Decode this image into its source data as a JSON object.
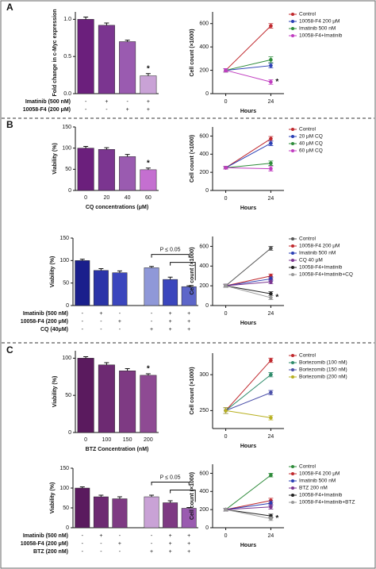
{
  "panels": [
    "A",
    "B",
    "C"
  ],
  "chart_data": [
    {
      "type": "bar",
      "ylabel": "Fold change in c-Myc expression",
      "values": [
        1.0,
        0.92,
        0.7,
        0.24
      ],
      "errors": [
        0.03,
        0.03,
        0.02,
        0.03
      ],
      "colors": [
        "#6b1f7c",
        "#7b3590",
        "#9a5bb0",
        "#c9a2d6"
      ],
      "markers": [
        null,
        null,
        null,
        "*"
      ],
      "ylim": [
        0,
        1.1
      ],
      "yticks": [
        {
          "value": 0,
          "label": "0.0"
        },
        {
          "value": 0.5,
          "label": "0.5"
        },
        {
          "value": 1.0,
          "label": "1.0"
        }
      ],
      "conditions": [
        {
          "label": "Imatinib (500 nM)",
          "signs": [
            "-",
            "+",
            "-",
            "+"
          ]
        },
        {
          "label": "10058-F4 (200 μM)",
          "signs": [
            "-",
            "-",
            "+",
            "+"
          ]
        }
      ]
    },
    {
      "type": "line",
      "xlabel": "Hours",
      "ylabel": "Cell count (×1000)",
      "x": [
        0,
        24
      ],
      "xlim": [
        -7,
        31
      ],
      "xticks": [
        0,
        24
      ],
      "ylim": [
        0,
        700
      ],
      "yticks": [
        0,
        200,
        400,
        600
      ],
      "series": [
        {
          "name": "Control",
          "color": "#c0282d",
          "values": [
            200,
            580
          ],
          "errors": [
            15,
            20
          ]
        },
        {
          "name": "10058-F4 200 μM",
          "color": "#2a3fb5",
          "values": [
            200,
            240
          ],
          "errors": [
            15,
            20
          ]
        },
        {
          "name": "Imatinib 500 nM",
          "color": "#2e8b3a",
          "values": [
            200,
            290
          ],
          "errors": [
            15,
            25
          ]
        },
        {
          "name": "10058-F4+Imatinib",
          "color": "#c03cc0",
          "values": [
            200,
            100
          ],
          "errors": [
            15,
            20
          ],
          "marker_label": "*"
        }
      ]
    },
    {
      "type": "bar",
      "ylabel": "Viability (%)",
      "xlabel": "CQ concentrations (μM)",
      "categories": [
        "0",
        "20",
        "40",
        "60"
      ],
      "values": [
        100,
        97,
        80,
        49
      ],
      "errors": [
        4,
        4,
        5,
        4
      ],
      "colors": [
        "#6b1f7c",
        "#7b3590",
        "#9a5bb0",
        "#c46fd0"
      ],
      "markers": [
        null,
        null,
        null,
        "*"
      ],
      "ylim": [
        0,
        150
      ],
      "yticks": [
        0,
        50,
        100,
        150
      ]
    },
    {
      "type": "line",
      "xlabel": "Hours",
      "ylabel": "Cell count (×1000)",
      "x": [
        0,
        24
      ],
      "xlim": [
        -7,
        31
      ],
      "xticks": [
        0,
        24
      ],
      "ylim": [
        0,
        700
      ],
      "yticks": [
        0,
        200,
        400,
        600
      ],
      "series": [
        {
          "name": "Control",
          "color": "#c0282d",
          "values": [
            250,
            570
          ],
          "errors": [
            15,
            25
          ]
        },
        {
          "name": "20 μM CQ",
          "color": "#2a3fb5",
          "values": [
            250,
            520
          ],
          "errors": [
            15,
            25
          ]
        },
        {
          "name": "40 μM CQ",
          "color": "#2e8b3a",
          "values": [
            250,
            300
          ],
          "errors": [
            15,
            25
          ]
        },
        {
          "name": "60 μM CQ",
          "color": "#c03cc0",
          "values": [
            250,
            240
          ],
          "errors": [
            15,
            25
          ]
        }
      ]
    },
    {
      "type": "bar",
      "ylabel": "Viability (%)",
      "values": [
        100,
        78,
        73,
        84,
        58,
        42
      ],
      "errors": [
        3,
        4,
        4,
        3,
        5,
        2
      ],
      "colors": [
        "#1a1f8c",
        "#2b34a8",
        "#3b46bd",
        "#8f98d8",
        "#3b46bd",
        "#5d66c9"
      ],
      "annotation": "P ≤ 0.05",
      "ylim": [
        0,
        150
      ],
      "yticks": [
        0,
        50,
        100,
        150
      ],
      "conditions": [
        {
          "label": "Imatinib (500 nM)",
          "signs": [
            "-",
            "+",
            "-",
            "-",
            "+",
            "+"
          ]
        },
        {
          "label": "10058-F4 (200 μM)",
          "signs": [
            "-",
            "-",
            "+",
            "-",
            "+",
            "+"
          ]
        },
        {
          "label": "CQ (40μM)",
          "signs": [
            "-",
            "-",
            "-",
            "+",
            "+",
            "+"
          ]
        }
      ]
    },
    {
      "type": "line",
      "xlabel": "Hours",
      "ylabel": "Cell count (×1000)",
      "x": [
        0,
        24
      ],
      "xlim": [
        -7,
        31
      ],
      "xticks": [
        0,
        24
      ],
      "ylim": [
        0,
        700
      ],
      "yticks": [
        0,
        200,
        400,
        600
      ],
      "series": [
        {
          "name": "Control",
          "color": "#555555",
          "values": [
            200,
            580
          ],
          "errors": [
            15,
            20
          ]
        },
        {
          "name": "10058-F4 200 μM",
          "color": "#c0282d",
          "values": [
            200,
            300
          ],
          "errors": [
            15,
            20
          ]
        },
        {
          "name": "Imatinib 500 nM",
          "color": "#2a3fb5",
          "values": [
            200,
            270
          ],
          "errors": [
            15,
            20
          ]
        },
        {
          "name": "CQ 40 μM",
          "color": "#7b3590",
          "values": [
            200,
            240
          ],
          "errors": [
            15,
            20
          ]
        },
        {
          "name": "10058-F4+Imatinib",
          "color": "#222222",
          "values": [
            200,
            120
          ],
          "errors": [
            15,
            20
          ]
        },
        {
          "name": "10058-F4+Imatinib+CQ",
          "color": "#999999",
          "values": [
            200,
            80
          ],
          "errors": [
            15,
            20
          ],
          "marker_label": "*"
        }
      ]
    },
    {
      "type": "bar",
      "ylabel": "Viability (%)",
      "xlabel": "BTZ Concentration (nM)",
      "categories": [
        "0",
        "100",
        "150",
        "200"
      ],
      "values": [
        100,
        91,
        83,
        77
      ],
      "errors": [
        2,
        3,
        3,
        2
      ],
      "colors": [
        "#5a1a5e",
        "#6d2a72",
        "#7e3a83",
        "#8e4a93"
      ],
      "markers": [
        null,
        null,
        null,
        "*"
      ],
      "ylim": [
        0,
        110
      ],
      "yticks": [
        0,
        50,
        100
      ]
    },
    {
      "type": "line",
      "xlabel": "Hours",
      "ylabel": "Cell count (×1000)",
      "x": [
        0,
        24
      ],
      "xlim": [
        -7,
        31
      ],
      "xticks": [
        0,
        24
      ],
      "ylim": [
        225,
        330
      ],
      "yticks": [
        250,
        300
      ],
      "series": [
        {
          "name": "Control",
          "color": "#c0282d",
          "values": [
            250,
            320
          ],
          "errors": [
            4,
            3
          ]
        },
        {
          "name": "Bortezomib (100 nM)",
          "color": "#2e8b6a",
          "values": [
            250,
            300
          ],
          "errors": [
            4,
            3
          ]
        },
        {
          "name": "Bortezomib (150 nM)",
          "color": "#4a4fa8",
          "values": [
            250,
            275
          ],
          "errors": [
            4,
            3
          ]
        },
        {
          "name": "Bortezomib (200 nM)",
          "color": "#b8b020",
          "values": [
            250,
            240
          ],
          "errors": [
            4,
            3
          ]
        }
      ]
    },
    {
      "type": "bar",
      "ylabel": "Viability (%)",
      "values": [
        100,
        78,
        73,
        78,
        63,
        49
      ],
      "errors": [
        3,
        4,
        5,
        4,
        5,
        2
      ],
      "colors": [
        "#5a1a5e",
        "#6d2a72",
        "#7e3a83",
        "#c9a2d6",
        "#7e3a83",
        "#9a5bb0"
      ],
      "annotation": "P ≤ 0.05",
      "ylim": [
        0,
        150
      ],
      "yticks": [
        0,
        50,
        100,
        150
      ],
      "conditions": [
        {
          "label": "Imatinib (500 nM)",
          "signs": [
            "-",
            "+",
            "-",
            "-",
            "+",
            "+"
          ]
        },
        {
          "label": "10058-F4 (200 μM)",
          "signs": [
            "-",
            "-",
            "+",
            "-",
            "+",
            "+"
          ]
        },
        {
          "label": "BTZ (200 nM)",
          "signs": [
            "-",
            "-",
            "-",
            "+",
            "+",
            "+"
          ]
        }
      ]
    },
    {
      "type": "line",
      "xlabel": "Hours",
      "ylabel": "Cell count (×1000)",
      "x": [
        0,
        24
      ],
      "xlim": [
        -7,
        31
      ],
      "xticks": [
        0,
        24
      ],
      "ylim": [
        0,
        700
      ],
      "yticks": [
        0,
        200,
        400,
        600
      ],
      "series": [
        {
          "name": "Control",
          "color": "#2e8b3a",
          "values": [
            200,
            580
          ],
          "errors": [
            15,
            20
          ]
        },
        {
          "name": "10058-F4 200 μM",
          "color": "#c0282d",
          "values": [
            200,
            300
          ],
          "errors": [
            15,
            25
          ]
        },
        {
          "name": "Imatinib 500 nM",
          "color": "#2a3fb5",
          "values": [
            200,
            270
          ],
          "errors": [
            15,
            25
          ]
        },
        {
          "name": "BTZ 200 nM",
          "color": "#7b3590",
          "values": [
            200,
            230
          ],
          "errors": [
            15,
            25
          ]
        },
        {
          "name": "10058-F4+Imatinib",
          "color": "#222222",
          "values": [
            200,
            130
          ],
          "errors": [
            15,
            20
          ]
        },
        {
          "name": "10058-F4+Imatinib+BTZ",
          "color": "#999999",
          "values": [
            200,
            100
          ],
          "errors": [
            15,
            20
          ],
          "marker_label": "*"
        }
      ]
    }
  ]
}
